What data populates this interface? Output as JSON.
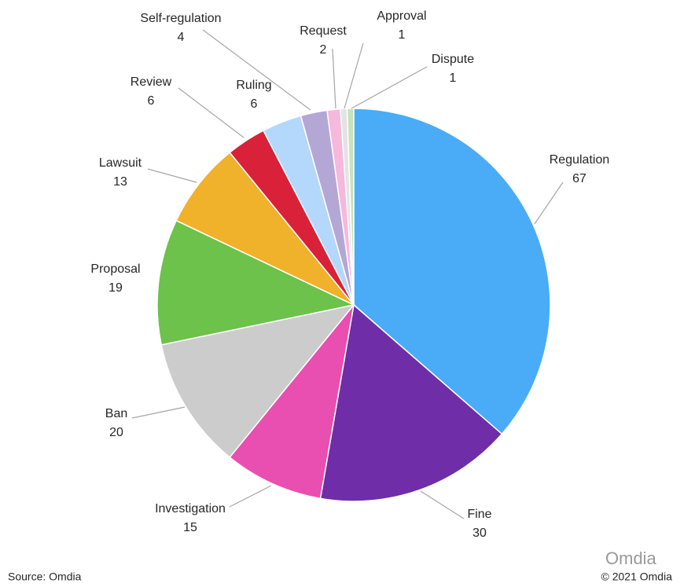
{
  "chart_data": {
    "type": "pie",
    "categories": [
      "Regulation",
      "Fine",
      "Investigation",
      "Ban",
      "Proposal",
      "Lawsuit",
      "Review",
      "Ruling",
      "Self-regulation",
      "Request",
      "Approval",
      "Dispute"
    ],
    "values": [
      67,
      30,
      15,
      20,
      19,
      13,
      6,
      6,
      4,
      2,
      1,
      1
    ],
    "colors": [
      "#4aabf7",
      "#6f2da8",
      "#e84fb0",
      "#cccccc",
      "#6cc24a",
      "#f0b12b",
      "#d9213a",
      "#b4d8fb",
      "#b4a7d6",
      "#f6b8dc",
      "#e3e3e3",
      "#c6e3bd"
    ],
    "source": "Source: Omdia",
    "copyright": "© 2021 Omdia",
    "watermark": "Omdia"
  }
}
